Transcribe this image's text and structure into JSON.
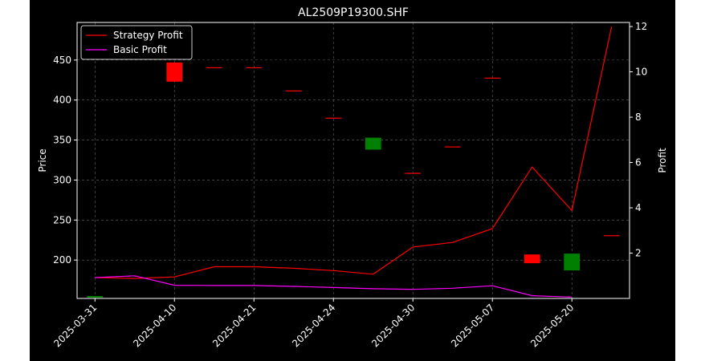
{
  "chart_data": {
    "type": "line",
    "title": "AL2509P19300.SHF",
    "xlabel": "",
    "ylabel": "Price",
    "y2label": "Profit",
    "ylim": [
      152,
      497
    ],
    "y2lim": [
      0.0,
      12.18
    ],
    "yticks": [
      200,
      250,
      300,
      350,
      400,
      450
    ],
    "y2ticks": [
      2,
      4,
      6,
      8,
      10,
      12
    ],
    "xticks": [
      "2025-03-31",
      "2025-04-10",
      "2025-04-21",
      "2025-04-24",
      "2025-04-30",
      "2025-05-07",
      "2025-05-20"
    ],
    "grid": true,
    "legend_position": "top-left",
    "x_index_range": [
      -0.45,
      13.45
    ],
    "candles": [
      {
        "idx": 0,
        "open": 153,
        "close": 155,
        "color": "#008000"
      },
      {
        "idx": 1,
        "open": 488,
        "close": 488,
        "color": "#ff0000"
      },
      {
        "idx": 2,
        "open": 447,
        "close": 423,
        "color": "#ff0000"
      },
      {
        "idx": 3,
        "open": 441,
        "close": 441,
        "color": "#ff0000"
      },
      {
        "idx": 4,
        "open": 441,
        "close": 441,
        "color": "#ff0000"
      },
      {
        "idx": 5,
        "open": 412,
        "close": 412,
        "color": "#ff0000"
      },
      {
        "idx": 6,
        "open": 378,
        "close": 378,
        "color": "#ff0000"
      },
      {
        "idx": 7,
        "open": 338,
        "close": 353,
        "color": "#008000"
      },
      {
        "idx": 8,
        "open": 309,
        "close": 309,
        "color": "#ff0000"
      },
      {
        "idx": 9,
        "open": 342,
        "close": 342,
        "color": "#ff0000"
      },
      {
        "idx": 10,
        "open": 428,
        "close": 428,
        "color": "#ff0000"
      },
      {
        "idx": 11,
        "open": 207,
        "close": 196,
        "color": "#ff0000"
      },
      {
        "idx": 12,
        "open": 187,
        "close": 208,
        "color": "#008000"
      },
      {
        "idx": 13,
        "open": 231,
        "close": 231,
        "color": "#ff0000"
      }
    ],
    "series": [
      {
        "name": "Strategy Profit",
        "color": "#ff0000",
        "axis": "right",
        "x": [
          0,
          1,
          2,
          3,
          4,
          5,
          6,
          7,
          8,
          9,
          10,
          11,
          12,
          13
        ],
        "values": [
          0.92,
          0.88,
          0.95,
          1.4,
          1.4,
          1.33,
          1.23,
          1.07,
          2.27,
          2.47,
          3.08,
          5.8,
          3.88,
          12.0
        ]
      },
      {
        "name": "Basic Profit",
        "color": "#ff00ff",
        "axis": "right",
        "x": [
          0,
          1,
          2,
          3,
          4,
          5,
          6,
          7,
          8,
          9,
          10,
          11,
          12
        ],
        "values": [
          0.92,
          1.0,
          0.58,
          0.57,
          0.57,
          0.53,
          0.48,
          0.43,
          0.4,
          0.45,
          0.56,
          0.12,
          0.06
        ]
      }
    ]
  }
}
